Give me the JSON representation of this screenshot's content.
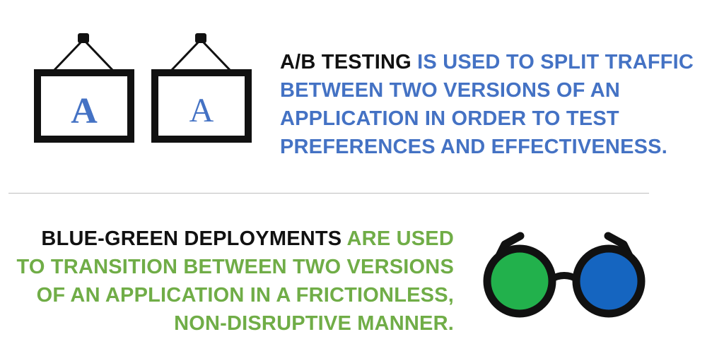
{
  "ab_testing": {
    "frame_letters": [
      "A",
      "A"
    ],
    "lead": "A/B TESTING",
    "rest": " IS USED TO SPLIT TRAFFIC BETWEEN TWO VERSIONS OF AN APPLICATION IN ORDER TO TEST PREFERENCES AND EFFECTIVENESS.",
    "icon": "picture-frames-icon"
  },
  "blue_green": {
    "lead": "BLUE-GREEN DEPLOYMENTS",
    "rest": " ARE USED TO TRANSITION BETWEEN TWO VERSIONS OF AN APPLICATION IN A FRICTIONLESS, NON-DISRUPTIVE MANNER.",
    "icon": "glasses-icon"
  },
  "colors": {
    "blue_accent": "#4472c4",
    "green_accent": "#70ad47",
    "lens_green": "#22b14c",
    "lens_blue": "#1565c0",
    "frame_dark": "#111111"
  }
}
